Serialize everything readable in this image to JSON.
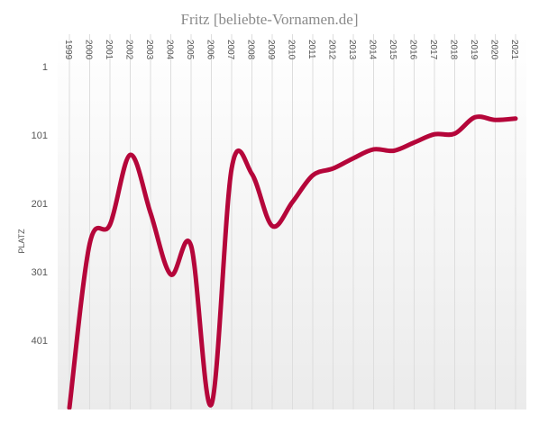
{
  "chart_data": {
    "type": "line",
    "title": "Fritz  [beliebte-Vornamen.de]",
    "xlabel": "",
    "ylabel": "PLATZ",
    "x": [
      "1999",
      "2000",
      "2001",
      "2002",
      "2003",
      "2004",
      "2005",
      "2006",
      "2007",
      "2008",
      "2009",
      "2010",
      "2011",
      "2012",
      "2013",
      "2014",
      "2015",
      "2016",
      "2017",
      "2018",
      "2019",
      "2020",
      "2021"
    ],
    "y_ticks": [
      "1",
      "101",
      "201",
      "301",
      "401"
    ],
    "ylim": [
      1,
      500
    ],
    "y_reversed": true,
    "grid": "vertical",
    "series": [
      {
        "name": "",
        "color": "#b5063a",
        "values": [
          500,
          260,
          232,
          130,
          215,
          305,
          263,
          495,
          150,
          158,
          234,
          199,
          160,
          150,
          135,
          122,
          124,
          112,
          100,
          99,
          75,
          79,
          77
        ]
      }
    ]
  }
}
